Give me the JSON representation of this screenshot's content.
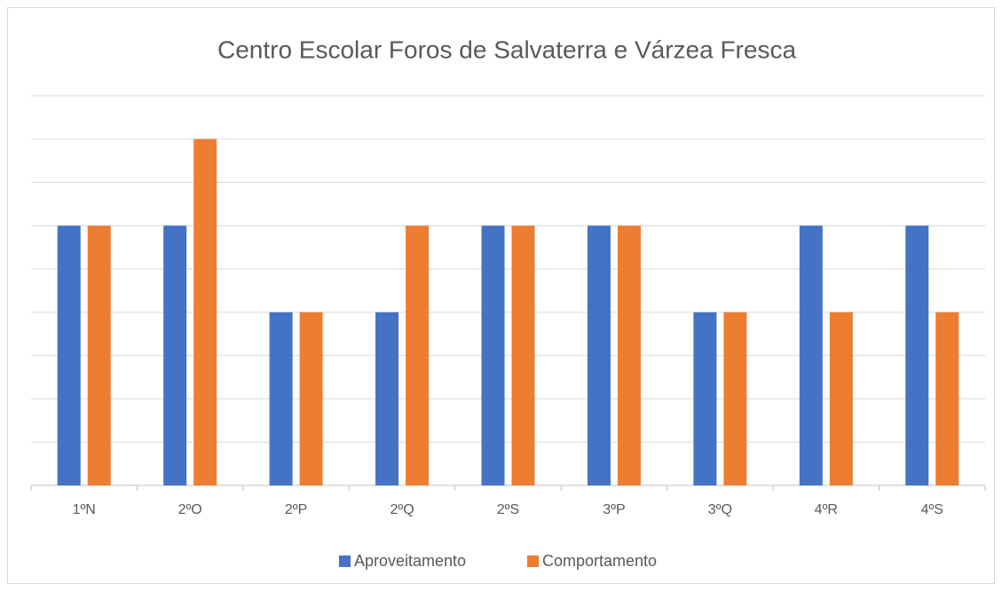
{
  "chart_data": {
    "type": "bar",
    "title": "Centro Escolar Foros de Salvaterra e Várzea Fresca",
    "categories": [
      "1ºN",
      "2ºO",
      "2ºP",
      "2ºQ",
      "2ºS",
      "3ºP",
      "3ºQ",
      "4ºR",
      "4ºS"
    ],
    "series": [
      {
        "name": "Aproveitamento",
        "color": "#4472c4",
        "values": [
          6,
          6,
          4,
          4,
          6,
          6,
          4,
          6,
          6
        ]
      },
      {
        "name": "Comportamento",
        "color": "#ed7d31",
        "values": [
          6,
          8,
          4,
          6,
          6,
          6,
          4,
          4,
          4
        ]
      }
    ],
    "ylim": [
      0,
      9
    ],
    "yticks": [
      0,
      1,
      2,
      3,
      4,
      5,
      6,
      7,
      8,
      9
    ],
    "grid": true,
    "legend": "bottom"
  }
}
